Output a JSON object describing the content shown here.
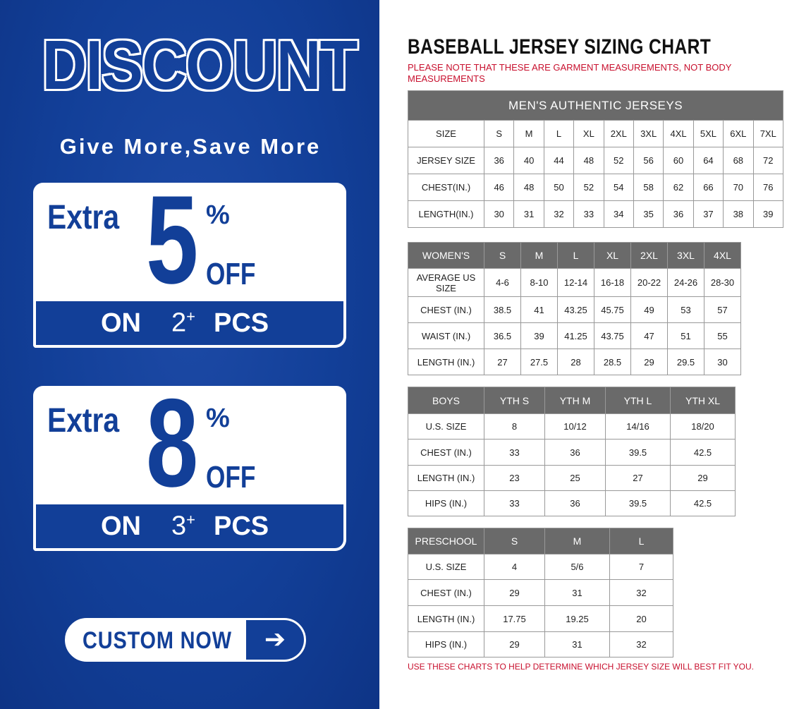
{
  "promo": {
    "headline": "DISCOUNT",
    "slogan": "Give More,Save More",
    "offers": [
      {
        "extra": "Extra",
        "number": "5",
        "percent": "%",
        "off": "OFF",
        "on": "ON",
        "count": "2",
        "plus": "+",
        "pcs": "PCS"
      },
      {
        "extra": "Extra",
        "number": "8",
        "percent": "%",
        "off": "OFF",
        "on": "ON",
        "count": "3",
        "plus": "+",
        "pcs": "PCS"
      }
    ],
    "cta_label": "CUSTOM NOW",
    "cta_icon": "arrow-right-icon",
    "brand_color": "#123f98"
  },
  "chart": {
    "title": "BASEBALL JERSEY SIZING CHART",
    "note": "PLEASE NOTE THAT THESE ARE GARMENT MEASUREMENTS, NOT BODY MEASUREMENTS",
    "footer": "USE THESE CHARTS TO HELP DETERMINE WHICH JERSEY SIZE WILL BEST FIT YOU.",
    "note_color": "#c8102e"
  },
  "men": {
    "title": "MEN'S AUTHENTIC JERSEYS",
    "rows": [
      [
        "SIZE",
        "S",
        "M",
        "L",
        "XL",
        "2XL",
        "3XL",
        "4XL",
        "5XL",
        "6XL",
        "7XL"
      ],
      [
        "JERSEY SIZE",
        "36",
        "40",
        "44",
        "48",
        "52",
        "56",
        "60",
        "64",
        "68",
        "72"
      ],
      [
        "CHEST(IN.)",
        "46",
        "48",
        "50",
        "52",
        "54",
        "58",
        "62",
        "66",
        "70",
        "76"
      ],
      [
        "LENGTH(IN.)",
        "30",
        "31",
        "32",
        "33",
        "34",
        "35",
        "36",
        "37",
        "38",
        "39"
      ]
    ]
  },
  "women": {
    "header": [
      "WOMEN'S",
      "S",
      "M",
      "L",
      "XL",
      "2XL",
      "3XL",
      "4XL"
    ],
    "rows": [
      [
        "AVERAGE US SIZE",
        "4-6",
        "8-10",
        "12-14",
        "16-18",
        "20-22",
        "24-26",
        "28-30"
      ],
      [
        "CHEST (IN.)",
        "38.5",
        "41",
        "43.25",
        "45.75",
        "49",
        "53",
        "57"
      ],
      [
        "WAIST (IN.)",
        "36.5",
        "39",
        "41.25",
        "43.75",
        "47",
        "51",
        "55"
      ],
      [
        "LENGTH (IN.)",
        "27",
        "27.5",
        "28",
        "28.5",
        "29",
        "29.5",
        "30"
      ]
    ]
  },
  "boys": {
    "header": [
      "BOYS",
      "YTH S",
      "YTH M",
      "YTH L",
      "YTH XL"
    ],
    "rows": [
      [
        "U.S. SIZE",
        "8",
        "10/12",
        "14/16",
        "18/20"
      ],
      [
        "CHEST (IN.)",
        "33",
        "36",
        "39.5",
        "42.5"
      ],
      [
        "LENGTH (IN.)",
        "23",
        "25",
        "27",
        "29"
      ],
      [
        "HIPS (IN.)",
        "33",
        "36",
        "39.5",
        "42.5"
      ]
    ]
  },
  "preschool": {
    "header": [
      "PRESCHOOL",
      "S",
      "M",
      "L"
    ],
    "rows": [
      [
        "U.S. SIZE",
        "4",
        "5/6",
        "7"
      ],
      [
        "CHEST (IN.)",
        "29",
        "31",
        "32"
      ],
      [
        "LENGTH (IN.)",
        "17.75",
        "19.25",
        "20"
      ],
      [
        "HIPS (IN.)",
        "29",
        "31",
        "32"
      ]
    ]
  }
}
